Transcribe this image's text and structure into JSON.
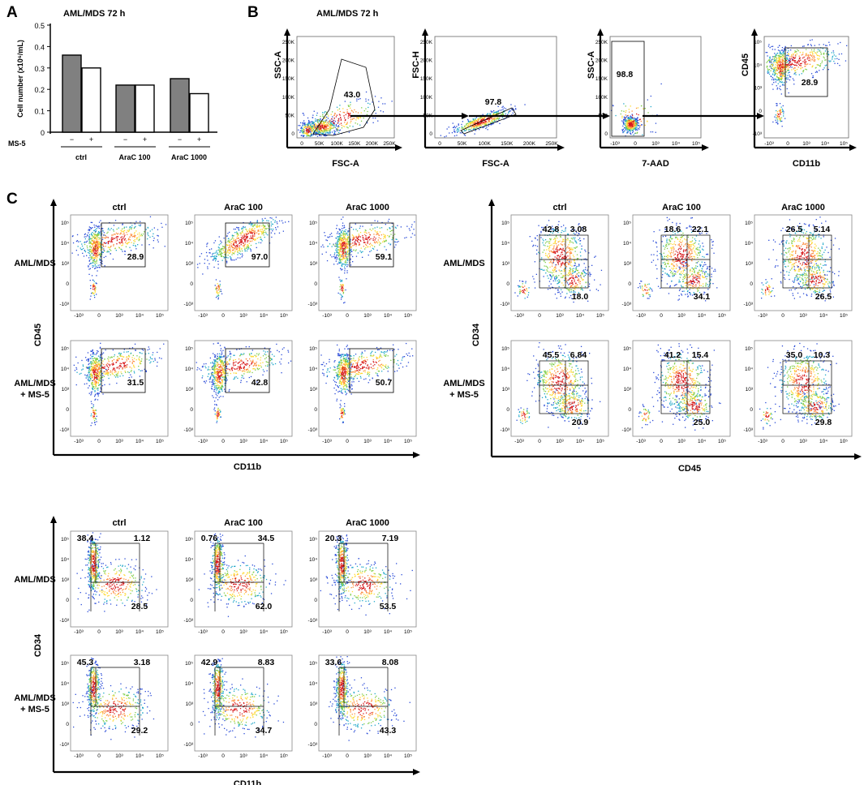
{
  "figure": {
    "panel_letters": [
      "A",
      "B",
      "C"
    ],
    "bar_axis_ticks": [
      "0",
      "0.1",
      "0.2",
      "0.3",
      "0.4",
      "0.5"
    ],
    "flow_ticks": {
      "lin": [
        "0",
        "50K",
        "100K",
        "150K",
        "200K",
        "250K"
      ],
      "log": [
        "-10³",
        "0",
        "10³",
        "10⁴",
        "10⁵"
      ]
    }
  },
  "chart_data": [
    {
      "id": "A",
      "type": "bar",
      "title": "AML/MDS 72 h",
      "ylabel": "Cell number (x10⁶/mL)",
      "ylim": [
        0,
        0.5
      ],
      "categories": [
        "ctrl",
        "AraC 100",
        "AraC 1000"
      ],
      "ms5_label": "MS-5",
      "ms5_signs": [
        "−",
        "+"
      ],
      "series": [
        {
          "name": "MS-5 −",
          "color": "#808080",
          "values": [
            0.36,
            0.22,
            0.25
          ]
        },
        {
          "name": "MS-5 +",
          "color": "#ffffff",
          "values": [
            0.3,
            0.22,
            0.18
          ]
        }
      ]
    },
    {
      "id": "B",
      "type": "scatter",
      "title": "AML/MDS 72 h",
      "plots": [
        {
          "xlabel": "FSC-A",
          "ylabel": "SSC-A",
          "xscale": "lin",
          "yscale": "lin",
          "gate": "43.0"
        },
        {
          "xlabel": "FSC-A",
          "ylabel": "FSC-H",
          "xscale": "lin",
          "yscale": "lin",
          "gate": "97.8"
        },
        {
          "xlabel": "7-AAD",
          "ylabel": "SSC-A",
          "xscale": "log",
          "yscale": "lin",
          "gate": "98.8"
        },
        {
          "xlabel": "CD11b",
          "ylabel": "CD45",
          "xscale": "log",
          "yscale": "log",
          "gate": "28.9"
        }
      ]
    },
    {
      "id": "C1",
      "type": "scatter",
      "xlabel": "CD11b",
      "ylabel": "CD45",
      "columns": [
        "ctrl",
        "AraC 100",
        "AraC 1000"
      ],
      "rows": [
        "AML/MDS",
        "AML/MDS\n+ MS-5"
      ],
      "values": [
        [
          "28.9",
          "97.0",
          "59.1"
        ],
        [
          "31.5",
          "42.8",
          "50.7"
        ]
      ]
    },
    {
      "id": "C2",
      "type": "scatter",
      "xlabel": "CD45",
      "ylabel": "CD34",
      "columns": [
        "ctrl",
        "AraC 100",
        "AraC 1000"
      ],
      "rows": [
        "AML/MDS",
        "AML/MDS\n+ MS-5"
      ],
      "quadrants": [
        [
          [
            "42.8",
            "3.08",
            "18.0"
          ],
          [
            "18.6",
            "22.1",
            "34.1"
          ],
          [
            "26.5",
            "5.14",
            "26.5"
          ]
        ],
        [
          [
            "45.5",
            "6.84",
            "20.9"
          ],
          [
            "41.2",
            "15.4",
            "25.0"
          ],
          [
            "35.0",
            "10.3",
            "29.8"
          ]
        ]
      ]
    },
    {
      "id": "C3",
      "type": "scatter",
      "xlabel": "CD11b",
      "ylabel": "CD34",
      "columns": [
        "ctrl",
        "AraC 100",
        "AraC 1000"
      ],
      "rows": [
        "AML/MDS",
        "AML/MDS\n+ MS-5"
      ],
      "quadrants": [
        [
          [
            "38.4",
            "1.12",
            "28.5"
          ],
          [
            "0.76",
            "34.5",
            "62.0"
          ],
          [
            "20.3",
            "7.19",
            "53.5"
          ]
        ],
        [
          [
            "45.3",
            "3.18",
            "29.2"
          ],
          [
            "42.9",
            "8.83",
            "34.7"
          ],
          [
            "33.6",
            "8.08",
            "43.3"
          ]
        ]
      ]
    }
  ]
}
